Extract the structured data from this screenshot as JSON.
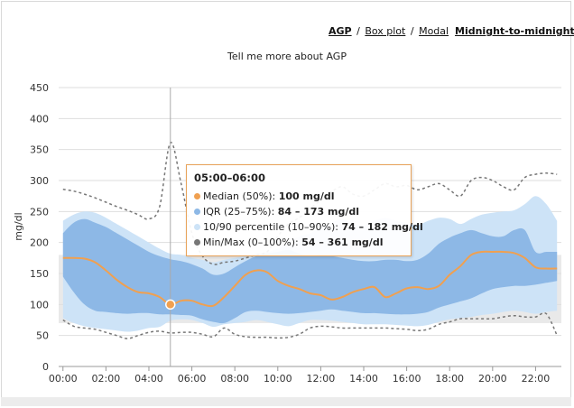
{
  "nav": {
    "agp_label": "AGP",
    "separator": "/",
    "boxplot_label": "Box plot",
    "modal_label": "Modal",
    "mode_label": "Midnight-to-midnight"
  },
  "subtitle": "Tell me more about AGP",
  "chart_data": {
    "type": "area",
    "ylabel": "mg/dl",
    "ylim": [
      0,
      450
    ],
    "yticks": [
      0,
      50,
      100,
      150,
      200,
      250,
      300,
      350,
      400,
      450
    ],
    "xlim": [
      -0.2,
      23.2
    ],
    "xticks": [
      "00:00",
      "02:00",
      "04:00",
      "06:00",
      "08:00",
      "10:00",
      "12:00",
      "14:00",
      "16:00",
      "18:00",
      "20:00",
      "22:00"
    ],
    "target_range": [
      70,
      180
    ],
    "x": [
      0,
      0.5,
      1,
      1.5,
      2,
      2.5,
      3,
      3.5,
      4,
      4.5,
      5,
      5.5,
      6,
      6.5,
      7,
      7.5,
      8,
      8.5,
      9,
      9.5,
      10,
      10.5,
      11,
      11.5,
      12,
      12.5,
      13,
      13.5,
      14,
      14.5,
      15,
      15.5,
      16,
      16.5,
      17,
      17.5,
      18,
      18.5,
      19,
      19.5,
      20,
      20.5,
      21,
      21.5,
      22,
      22.5,
      23
    ],
    "series": [
      {
        "name": "Min/Max (0–100%)",
        "color": "#777777",
        "style": "dashed",
        "min": [
          75,
          65,
          62,
          60,
          55,
          50,
          45,
          50,
          55,
          57,
          54,
          55,
          55,
          52,
          48,
          62,
          52,
          48,
          47,
          47,
          46,
          47,
          52,
          62,
          65,
          64,
          62,
          62,
          62,
          62,
          62,
          61,
          60,
          58,
          60,
          68,
          72,
          77,
          77,
          77,
          77,
          80,
          82,
          80,
          80,
          85,
          50
        ],
        "max": [
          286,
          283,
          278,
          272,
          265,
          258,
          252,
          245,
          238,
          258,
          361,
          295,
          215,
          178,
          165,
          168,
          170,
          175,
          180,
          185,
          210,
          230,
          240,
          255,
          268,
          282,
          290,
          278,
          275,
          285,
          295,
          290,
          292,
          285,
          290,
          295,
          285,
          275,
          300,
          305,
          300,
          290,
          285,
          305,
          310,
          312,
          310
        ]
      },
      {
        "name": "10/90 percentile (10–90%)",
        "color": "#cde3f7",
        "lo": [
          78,
          70,
          65,
          62,
          60,
          58,
          56,
          58,
          62,
          64,
          74,
          76,
          75,
          70,
          64,
          68,
          70,
          72,
          75,
          72,
          68,
          65,
          70,
          75,
          75,
          74,
          72,
          70,
          68,
          68,
          68,
          67,
          66,
          65,
          67,
          72,
          76,
          78,
          80,
          83,
          85,
          88,
          90,
          88,
          85,
          88,
          90
        ],
        "hi": [
          235,
          245,
          250,
          248,
          240,
          230,
          220,
          210,
          200,
          190,
          182,
          180,
          175,
          172,
          168,
          172,
          175,
          178,
          182,
          185,
          190,
          200,
          210,
          215,
          225,
          232,
          238,
          230,
          228,
          235,
          240,
          235,
          232,
          228,
          235,
          240,
          238,
          230,
          238,
          245,
          248,
          250,
          252,
          262,
          275,
          262,
          235
        ]
      },
      {
        "name": "IQR (25–75%)",
        "color": "#8db8e6",
        "lo": [
          145,
          120,
          100,
          90,
          88,
          86,
          85,
          86,
          86,
          84,
          84,
          83,
          82,
          76,
          72,
          70,
          78,
          88,
          90,
          88,
          86,
          85,
          86,
          88,
          90,
          92,
          90,
          88,
          86,
          86,
          85,
          84,
          84,
          85,
          88,
          95,
          100,
          105,
          110,
          118,
          125,
          128,
          130,
          130,
          132,
          135,
          138
        ],
        "hi": [
          215,
          232,
          238,
          232,
          225,
          215,
          205,
          195,
          185,
          178,
          173,
          170,
          165,
          158,
          148,
          150,
          160,
          170,
          178,
          182,
          185,
          188,
          182,
          178,
          180,
          178,
          175,
          172,
          170,
          170,
          172,
          172,
          170,
          172,
          182,
          198,
          208,
          215,
          220,
          215,
          210,
          210,
          220,
          220,
          185,
          185,
          185
        ]
      },
      {
        "name": "Median (50%)",
        "color": "#f0a050",
        "values": [
          175,
          175,
          174,
          168,
          155,
          140,
          128,
          120,
          118,
          112,
          100,
          106,
          106,
          100,
          98,
          112,
          130,
          148,
          155,
          152,
          138,
          130,
          125,
          118,
          115,
          108,
          112,
          120,
          125,
          128,
          112,
          118,
          126,
          128,
          125,
          130,
          148,
          162,
          180,
          185,
          185,
          185,
          183,
          175,
          160,
          158,
          158
        ]
      }
    ],
    "marker": {
      "x": 5,
      "y": 100
    },
    "tooltip": {
      "title": "05:00–06:00",
      "rows": [
        {
          "label": "Median (50%):",
          "value": "100 mg/dl",
          "color": "#f0a050"
        },
        {
          "label": "IQR (25–75%):",
          "value": "84 – 173 mg/dl",
          "color": "#8db8e6"
        },
        {
          "label": "10/90 percentile (10–90%):",
          "value": "74 – 182 mg/dl",
          "color": "#cde3f7"
        },
        {
          "label": "Min/Max (0–100%):",
          "value": "54 – 361 mg/dl",
          "color": "#777777"
        }
      ]
    },
    "grid": true,
    "legend": "none"
  }
}
